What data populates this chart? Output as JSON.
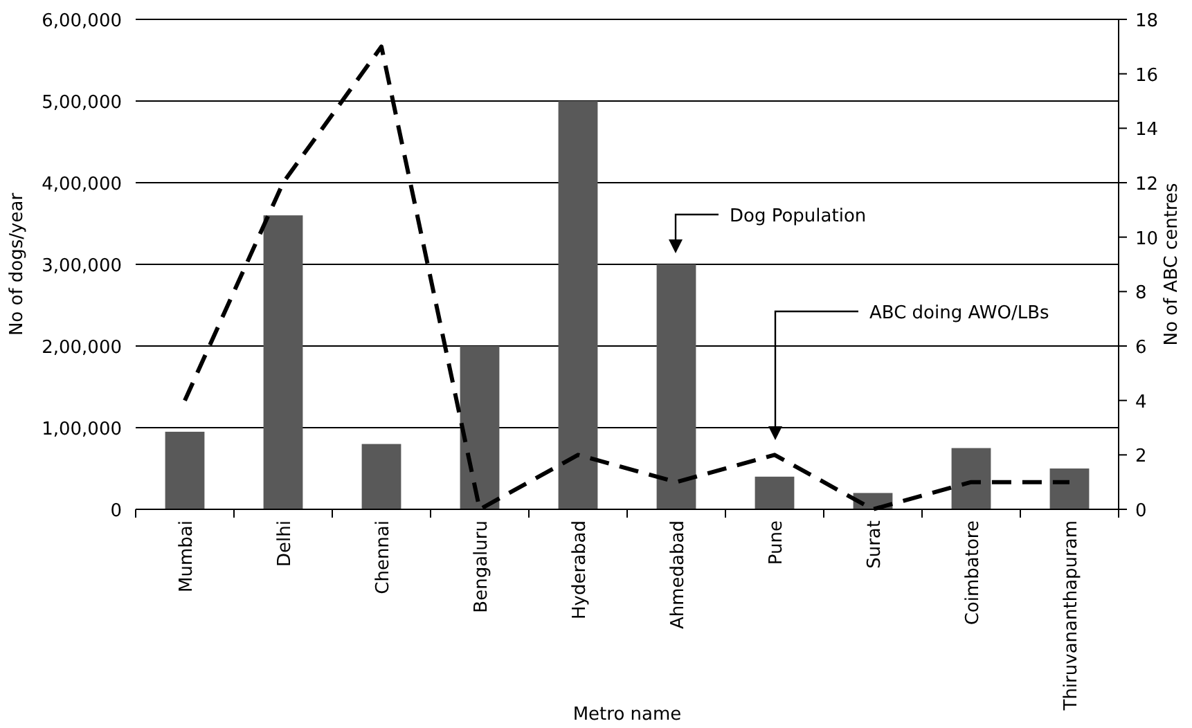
{
  "chart_data": {
    "type": "bar",
    "xlabel": "Metro name",
    "ylabel": "No of dogs/year",
    "y2label": "No of ABC centres",
    "categories": [
      "Mumbai",
      "Delhi",
      "Chennai",
      "Bengaluru",
      "Hyderabad",
      "Ahmedabad",
      "Pune",
      "Surat",
      "Coimbatore",
      "Thiruvananthapuram"
    ],
    "series": [
      {
        "color": "#595959",
        "values": [
          95000,
          360000,
          80000,
          200000,
          500000,
          300000,
          40000,
          20000,
          75000,
          50000
        ]
      },
      {
        "type": "line",
        "axis": "y2",
        "color": "#000000",
        "line_style": "dashed",
        "values": [
          4,
          12,
          17,
          0,
          2,
          1,
          2,
          0,
          1,
          1
        ]
      }
    ],
    "ylim": [
      0,
      600000
    ],
    "yticks": [
      {
        "value": 0,
        "label": "0"
      },
      {
        "value": 100000,
        "label": "1,00,000"
      },
      {
        "value": 200000,
        "label": "2,00,000"
      },
      {
        "value": 300000,
        "label": "3,00,000"
      },
      {
        "value": 400000,
        "label": "4,00,000"
      },
      {
        "value": 500000,
        "label": "5,00,000"
      },
      {
        "value": 600000,
        "label": "6,00,000"
      }
    ],
    "y2lim": [
      0,
      18
    ],
    "y2ticks": [
      0,
      2,
      4,
      6,
      8,
      10,
      12,
      14,
      16,
      18
    ],
    "grid": "y",
    "annotations": [
      "Dog Population",
      "ABC doing AWO/LBs"
    ]
  }
}
